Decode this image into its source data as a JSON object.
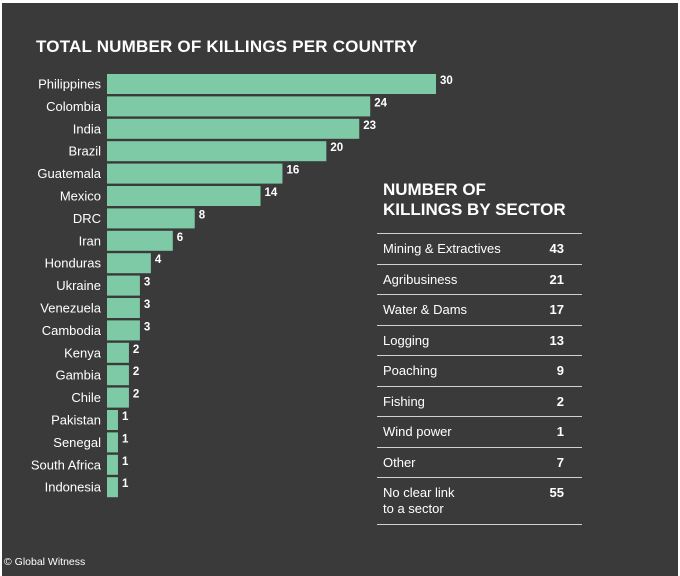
{
  "chart_data": [
    {
      "type": "bar",
      "orientation": "horizontal",
      "title": "TOTAL NUMBER OF KILLINGS PER COUNTRY",
      "categories": [
        "Philippines",
        "Colombia",
        "India",
        "Brazil",
        "Guatemala",
        "Mexico",
        "DRC",
        "Iran",
        "Honduras",
        "Ukraine",
        "Venezuela",
        "Cambodia",
        "Kenya",
        "Gambia",
        "Chile",
        "Pakistan",
        "Senegal",
        "South Africa",
        "Indonesia"
      ],
      "values": [
        30,
        24,
        23,
        20,
        16,
        14,
        8,
        6,
        4,
        3,
        3,
        3,
        2,
        2,
        2,
        1,
        1,
        1,
        1
      ],
      "value_labels": [
        "30",
        "24",
        "23",
        "20",
        "16",
        "14",
        "8",
        "6",
        "4",
        "3",
        "3",
        "3",
        "2",
        "2",
        "2",
        "1",
        "1",
        "1",
        "1"
      ],
      "xlim": [
        0,
        30
      ],
      "grid": false,
      "legend": "none",
      "bar_color": "#7fcaa6"
    },
    {
      "type": "table",
      "title_lines": [
        "NUMBER OF",
        "KILLINGS BY SECTOR"
      ],
      "rows": [
        {
          "sector": "Mining & Extractives",
          "value": 43,
          "label": "43"
        },
        {
          "sector": "Agribusiness",
          "value": 21,
          "label": "21"
        },
        {
          "sector": "Water & Dams",
          "value": 17,
          "label": "17"
        },
        {
          "sector": "Logging",
          "value": 13,
          "label": "13"
        },
        {
          "sector": "Poaching",
          "value": 9,
          "label": "9"
        },
        {
          "sector": "Fishing",
          "value": 2,
          "label": "2"
        },
        {
          "sector": "Wind power",
          "value": 1,
          "label": "1"
        },
        {
          "sector": "Other",
          "value": 7,
          "label": "7"
        },
        {
          "sector": "No clear link\nto a sector",
          "value": 55,
          "label": "55"
        }
      ]
    }
  ],
  "credit": "© Global Witness",
  "colors": {
    "background": "#3a3a3a",
    "bar": "#7fcaa6",
    "text": "#ffffff",
    "rule": "#d0d0d0"
  }
}
